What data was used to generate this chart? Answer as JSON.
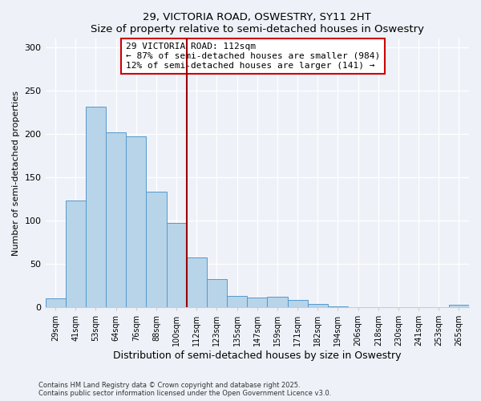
{
  "title": "29, VICTORIA ROAD, OSWESTRY, SY11 2HT",
  "subtitle": "Size of property relative to semi-detached houses in Oswestry",
  "xlabel": "Distribution of semi-detached houses by size in Oswestry",
  "ylabel": "Number of semi-detached properties",
  "categories": [
    "29sqm",
    "41sqm",
    "53sqm",
    "64sqm",
    "76sqm",
    "88sqm",
    "100sqm",
    "112sqm",
    "123sqm",
    "135sqm",
    "147sqm",
    "159sqm",
    "171sqm",
    "182sqm",
    "194sqm",
    "206sqm",
    "218sqm",
    "230sqm",
    "241sqm",
    "253sqm",
    "265sqm"
  ],
  "values": [
    10,
    123,
    232,
    202,
    197,
    133,
    97,
    57,
    32,
    13,
    11,
    12,
    8,
    4,
    1,
    0,
    0,
    0,
    0,
    0,
    3
  ],
  "bar_color": "#b8d4e8",
  "bar_edge_color": "#5599cc",
  "highlight_index": 7,
  "highlight_line_color": "#990000",
  "annotation_title": "29 VICTORIA ROAD: 112sqm",
  "annotation_line1": "← 87% of semi-detached houses are smaller (984)",
  "annotation_line2": "12% of semi-detached houses are larger (141) →",
  "annotation_box_color": "#ffffff",
  "annotation_box_edge": "#cc0000",
  "ylim": [
    0,
    310
  ],
  "yticks": [
    0,
    50,
    100,
    150,
    200,
    250,
    300
  ],
  "footer1": "Contains HM Land Registry data © Crown copyright and database right 2025.",
  "footer2": "Contains public sector information licensed under the Open Government Licence v3.0.",
  "bg_color": "#eef2f8"
}
